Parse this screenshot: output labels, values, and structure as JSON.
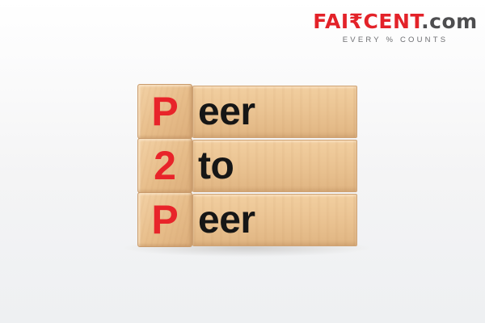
{
  "brand": {
    "name_part1": "FAI",
    "name_rupee": "₹",
    "name_part2": "CENT",
    "name_suffix": ".com",
    "tagline": "EVERY % COUNTS"
  },
  "blocks": [
    {
      "letter": "P",
      "word": "eer"
    },
    {
      "letter": "2",
      "word": "to"
    },
    {
      "letter": "P",
      "word": "eer"
    }
  ],
  "colors": {
    "brand_red": "#e32229",
    "brand_grey": "#4d4d4f",
    "letter_red": "#e8242a",
    "word_black": "#161616",
    "wood": "#eac392"
  }
}
